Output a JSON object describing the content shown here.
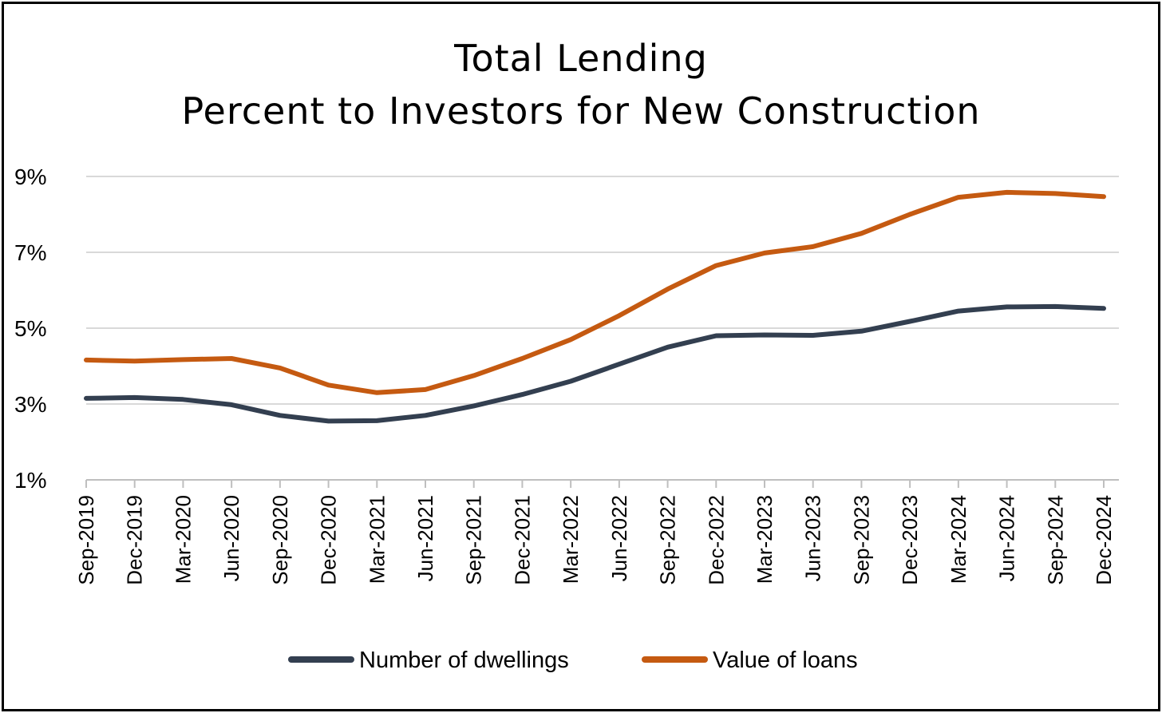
{
  "chart_data": {
    "type": "line",
    "title": "Total Lending",
    "subtitle": "Percent to Investors for New Construction",
    "xlabel": "",
    "ylabel": "",
    "ylim": [
      1,
      9
    ],
    "yticks": [
      1,
      3,
      5,
      7,
      9
    ],
    "ytick_labels": [
      "1%",
      "3%",
      "5%",
      "7%",
      "9%"
    ],
    "grid": true,
    "legend_position": "bottom",
    "categories": [
      "Sep-2019",
      "Dec-2019",
      "Mar-2020",
      "Jun-2020",
      "Sep-2020",
      "Dec-2020",
      "Mar-2021",
      "Jun-2021",
      "Sep-2021",
      "Dec-2021",
      "Mar-2022",
      "Jun-2022",
      "Sep-2022",
      "Dec-2022",
      "Mar-2023",
      "Jun-2023",
      "Sep-2023",
      "Dec-2023",
      "Mar-2024",
      "Jun-2024",
      "Sep-2024",
      "Dec-2024"
    ],
    "series": [
      {
        "name": "Number of dwellings",
        "color": "#333f50",
        "values": [
          3.15,
          3.17,
          3.12,
          2.98,
          2.7,
          2.55,
          2.56,
          2.7,
          2.95,
          3.25,
          3.6,
          4.05,
          4.5,
          4.8,
          4.82,
          4.81,
          4.92,
          5.18,
          5.45,
          5.56,
          5.57,
          5.52
        ]
      },
      {
        "name": "Value of loans",
        "color": "#c55a11",
        "values": [
          4.16,
          4.13,
          4.17,
          4.2,
          3.95,
          3.5,
          3.3,
          3.38,
          3.75,
          4.2,
          4.7,
          5.33,
          6.03,
          6.65,
          6.98,
          7.15,
          7.5,
          8.0,
          8.45,
          8.58,
          8.55,
          8.47
        ]
      }
    ]
  }
}
